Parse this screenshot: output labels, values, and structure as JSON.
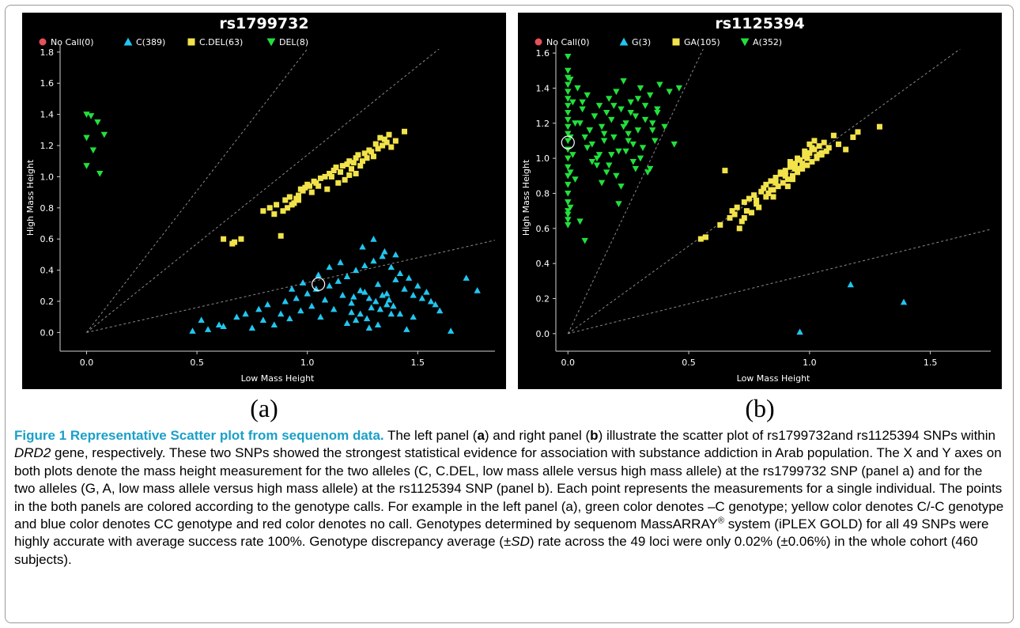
{
  "chart_data": [
    {
      "type": "scatter",
      "title": "rs1799732",
      "xlabel": "Low Mass Height",
      "ylabel": "High Mass Height",
      "xlim": [
        -0.12,
        1.85
      ],
      "ylim": [
        -0.12,
        1.85
      ],
      "xticks": [
        "0.0",
        "0.5",
        "1.0",
        "1.5"
      ],
      "xtick_values": [
        0.0,
        0.5,
        1.0,
        1.5
      ],
      "yticks": [
        "0.0",
        "0.2",
        "0.4",
        "0.6",
        "0.8",
        "1.0",
        "1.2",
        "1.4",
        "1.6",
        "1.8"
      ],
      "ytick_values": [
        0.0,
        0.2,
        0.4,
        0.6,
        0.8,
        1.0,
        1.2,
        1.4,
        1.6,
        1.8
      ],
      "legend_position": "top",
      "legend": [
        {
          "label": "No Call(0)",
          "marker": "circle",
          "color": "#e8505b"
        },
        {
          "label": "C(389)",
          "marker": "triangle-up",
          "color": "#22c6f0"
        },
        {
          "label": "C.DEL(63)",
          "marker": "square",
          "color": "#f2e34a"
        },
        {
          "label": "DEL(8)",
          "marker": "triangle-down",
          "color": "#22e03c"
        }
      ],
      "reference_line_slopes": [
        1.82,
        1.14,
        0.32
      ],
      "circled_point": [
        1.05,
        0.31
      ],
      "series": [
        {
          "name": "DEL(8)",
          "marker": "triangle-down",
          "color": "#22e03c",
          "x": [
            0.0,
            0.02,
            0.05,
            0.0,
            0.03,
            0.0,
            0.08,
            0.06
          ],
          "y": [
            1.4,
            1.39,
            1.35,
            1.25,
            1.17,
            1.07,
            1.27,
            1.02
          ]
        },
        {
          "name": "C.DEL(63)",
          "marker": "square",
          "color": "#f2e34a",
          "x": [
            0.62,
            0.67,
            0.7,
            0.66,
            0.8,
            0.83,
            0.86,
            0.88,
            0.9,
            0.92,
            0.94,
            0.96,
            0.97,
            0.99,
            1.0,
            1.02,
            1.03,
            0.91,
            0.93,
            0.95,
            0.98,
            1.01,
            1.04,
            1.06,
            1.08,
            1.1,
            1.12,
            1.13,
            1.15,
            1.16,
            1.18,
            1.19,
            1.2,
            1.22,
            1.23,
            1.25,
            1.26,
            1.28,
            1.3,
            1.32,
            1.34,
            1.36,
            1.38,
            1.4,
            1.22,
            1.24,
            1.27,
            1.29,
            1.31,
            1.17,
            1.14,
            1.11,
            1.09,
            1.33,
            1.35,
            1.37,
            1.21,
            1.19,
            0.96,
            0.89,
            1.05,
            1.44,
            0.85
          ],
          "y": [
            0.6,
            0.58,
            0.6,
            0.57,
            0.78,
            0.8,
            0.82,
            0.62,
            0.85,
            0.87,
            0.83,
            0.88,
            0.92,
            0.93,
            0.95,
            0.9,
            0.97,
            0.8,
            0.82,
            0.86,
            0.91,
            0.94,
            0.96,
            0.99,
            1.0,
            1.02,
            1.04,
            1.06,
            1.03,
            1.07,
            1.08,
            1.1,
            1.05,
            1.12,
            1.14,
            1.1,
            1.15,
            1.17,
            1.13,
            1.18,
            1.2,
            1.22,
            1.19,
            1.23,
            1.02,
            1.07,
            1.12,
            1.16,
            1.21,
            0.98,
            0.96,
            1.0,
            0.92,
            1.25,
            1.24,
            1.27,
            1.09,
            1.01,
            0.85,
            0.78,
            0.94,
            1.29,
            0.76
          ]
        },
        {
          "name": "C(389)",
          "marker": "triangle-up",
          "color": "#22c6f0",
          "x": [
            0.48,
            0.52,
            0.55,
            0.6,
            0.62,
            0.68,
            0.72,
            0.75,
            0.78,
            0.8,
            0.82,
            0.85,
            0.88,
            0.9,
            0.92,
            0.95,
            0.97,
            1.0,
            1.02,
            1.04,
            1.06,
            1.08,
            1.1,
            1.12,
            1.14,
            1.16,
            1.18,
            1.2,
            1.22,
            1.24,
            1.26,
            1.28,
            1.3,
            1.32,
            1.34,
            1.36,
            1.38,
            1.4,
            1.42,
            1.44,
            1.46,
            1.48,
            1.5,
            1.52,
            1.54,
            1.56,
            1.58,
            1.6,
            1.65,
            1.72,
            1.77,
            1.25,
            1.3,
            1.35,
            1.4,
            1.32,
            1.28,
            1.22,
            1.18,
            1.45,
            1.38,
            1.15,
            1.1,
            1.05,
            0.98,
            0.93,
            1.33,
            1.36,
            1.42,
            1.48,
            1.27,
            1.24,
            1.2,
            1.31,
            1.34,
            1.29,
            1.37,
            1.39,
            1.26,
            1.21
          ],
          "y": [
            0.01,
            0.08,
            0.02,
            0.05,
            0.04,
            0.1,
            0.12,
            0.03,
            0.15,
            0.08,
            0.18,
            0.05,
            0.12,
            0.2,
            0.09,
            0.22,
            0.14,
            0.25,
            0.17,
            0.28,
            0.1,
            0.21,
            0.3,
            0.15,
            0.33,
            0.24,
            0.36,
            0.19,
            0.4,
            0.27,
            0.43,
            0.22,
            0.46,
            0.31,
            0.49,
            0.25,
            0.42,
            0.34,
            0.38,
            0.28,
            0.35,
            0.24,
            0.3,
            0.22,
            0.26,
            0.2,
            0.18,
            0.14,
            0.01,
            0.35,
            0.27,
            0.55,
            0.6,
            0.52,
            0.5,
            0.05,
            0.03,
            0.08,
            0.06,
            0.02,
            0.12,
            0.45,
            0.42,
            0.37,
            0.32,
            0.28,
            0.15,
            0.18,
            0.12,
            0.1,
            0.09,
            0.12,
            0.13,
            0.2,
            0.24,
            0.16,
            0.21,
            0.17,
            0.26,
            0.23
          ]
        }
      ]
    },
    {
      "type": "scatter",
      "title": "rs1125394",
      "xlabel": "Low Mass Height",
      "ylabel": "High Mass Height",
      "xlim": [
        -0.05,
        1.75
      ],
      "ylim": [
        -0.1,
        1.65
      ],
      "xticks": [
        "0.0",
        "0.5",
        "1.0",
        "1.5"
      ],
      "xtick_values": [
        0.0,
        0.5,
        1.0,
        1.5
      ],
      "yticks": [
        "0.0",
        "0.2",
        "0.4",
        "0.6",
        "0.8",
        "1.0",
        "1.2",
        "1.4",
        "1.6"
      ],
      "ytick_values": [
        0.0,
        0.2,
        0.4,
        0.6,
        0.8,
        1.0,
        1.2,
        1.4,
        1.6
      ],
      "legend_position": "top",
      "legend": [
        {
          "label": "No Call(0)",
          "marker": "circle",
          "color": "#e8505b"
        },
        {
          "label": "G(3)",
          "marker": "triangle-up",
          "color": "#22c6f0"
        },
        {
          "label": "GA(105)",
          "marker": "square",
          "color": "#f2e34a"
        },
        {
          "label": "A(352)",
          "marker": "triangle-down",
          "color": "#22e03c"
        }
      ],
      "reference_line_slopes": [
        2.9,
        1.0,
        0.34
      ],
      "circled_point": [
        0.0,
        1.09
      ],
      "series": [
        {
          "name": "A(352)",
          "marker": "triangle-down",
          "color": "#22e03c",
          "x": [
            0.0,
            0.0,
            0.0,
            0.0,
            0.0,
            0.0,
            0.0,
            0.0,
            0.0,
            0.0,
            0.0,
            0.0,
            0.0,
            0.0,
            0.0,
            0.0,
            0.0,
            0.0,
            0.0,
            0.0,
            0.0,
            0.0,
            0.0,
            0.01,
            0.01,
            0.01,
            0.01,
            0.02,
            0.02,
            0.03,
            0.03,
            0.04,
            0.05,
            0.06,
            0.07,
            0.08,
            0.09,
            0.1,
            0.11,
            0.12,
            0.13,
            0.14,
            0.15,
            0.16,
            0.17,
            0.18,
            0.19,
            0.2,
            0.21,
            0.22,
            0.23,
            0.24,
            0.25,
            0.26,
            0.27,
            0.28,
            0.29,
            0.3,
            0.31,
            0.32,
            0.33,
            0.34,
            0.35,
            0.36,
            0.37,
            0.38,
            0.4,
            0.42,
            0.44,
            0.46,
            0.05,
            0.08,
            0.12,
            0.15,
            0.18,
            0.22,
            0.25,
            0.28,
            0.32,
            0.1,
            0.14,
            0.2,
            0.24,
            0.3,
            0.06,
            0.09,
            0.16,
            0.26,
            0.34,
            0.07,
            0.11,
            0.19,
            0.23,
            0.29,
            0.37,
            0.13,
            0.21,
            0.27,
            0.17,
            0.35
          ],
          "y": [
            1.58,
            1.5,
            1.46,
            1.42,
            1.38,
            1.34,
            1.3,
            1.26,
            1.22,
            1.18,
            1.14,
            1.1,
            1.05,
            1.0,
            0.95,
            0.9,
            0.85,
            0.8,
            0.75,
            0.7,
            0.65,
            0.62,
            0.68,
            1.45,
            1.12,
            0.92,
            0.72,
            1.32,
            1.02,
            1.2,
            0.88,
            1.4,
            0.64,
            1.28,
            0.53,
            1.36,
            1.16,
            1.08,
            1.24,
            1.0,
            1.3,
            1.18,
            1.1,
            1.26,
            1.34,
            1.22,
            1.12,
            1.38,
            1.04,
            1.28,
            1.44,
            1.2,
            1.14,
            1.32,
            0.98,
            1.24,
            1.16,
            1.4,
            1.06,
            1.3,
            0.92,
            1.36,
            1.2,
            1.1,
            1.28,
            1.42,
            1.18,
            1.38,
            1.08,
            1.4,
            1.2,
            1.06,
            0.96,
            1.14,
            1.02,
            0.84,
            1.1,
            0.94,
            1.22,
            0.98,
            0.86,
            0.9,
            1.04,
            1.0,
            1.32,
            1.16,
            0.92,
            1.26,
            0.94,
            1.12,
            1.24,
            1.3,
            1.18,
            1.34,
            1.26,
            1.02,
            0.74,
            1.08,
            0.96,
            1.16
          ]
        },
        {
          "name": "GA(105)",
          "marker": "square",
          "color": "#f2e34a",
          "x": [
            0.55,
            0.57,
            0.63,
            0.65,
            0.67,
            0.68,
            0.7,
            0.72,
            0.73,
            0.74,
            0.75,
            0.77,
            0.78,
            0.8,
            0.81,
            0.82,
            0.83,
            0.84,
            0.85,
            0.86,
            0.87,
            0.88,
            0.89,
            0.9,
            0.91,
            0.92,
            0.93,
            0.94,
            0.95,
            0.96,
            0.97,
            0.98,
            0.99,
            1.0,
            1.01,
            1.02,
            1.03,
            1.04,
            1.05,
            1.06,
            1.07,
            1.08,
            1.1,
            1.12,
            1.15,
            1.18,
            1.2,
            1.29,
            0.88,
            0.92,
            0.95,
            0.98,
            1.0,
            1.02,
            1.04,
            0.86,
            0.9,
            0.94,
            0.97,
            0.99,
            1.01,
            1.03,
            0.85,
            0.93,
            0.96,
            1.05,
            0.76,
            0.79,
            0.69,
            0.71,
            0.73,
            0.82,
            0.84,
            0.91,
            0.78
          ],
          "y": [
            0.54,
            0.55,
            0.62,
            0.93,
            0.66,
            0.7,
            0.72,
            0.64,
            0.75,
            0.7,
            0.77,
            0.79,
            0.74,
            0.81,
            0.83,
            0.85,
            0.8,
            0.87,
            0.82,
            0.89,
            0.84,
            0.91,
            0.86,
            0.93,
            0.88,
            0.95,
            0.9,
            0.97,
            0.92,
            0.99,
            0.94,
            1.01,
            0.96,
            1.03,
            0.98,
            1.05,
            1.0,
            1.07,
            1.02,
            1.09,
            1.04,
            1.06,
            1.13,
            1.08,
            1.05,
            1.12,
            1.15,
            1.18,
            0.92,
            0.98,
            1.0,
            1.04,
            1.08,
            1.1,
            1.02,
            0.86,
            0.9,
            0.94,
            0.97,
            1.0,
            1.06,
            1.01,
            0.78,
            0.88,
            0.94,
            1.03,
            0.69,
            0.72,
            0.68,
            0.6,
            0.66,
            0.78,
            0.82,
            0.84,
            0.76
          ]
        },
        {
          "name": "G(3)",
          "marker": "triangle-up",
          "color": "#22c6f0",
          "x": [
            1.17,
            1.39,
            0.96
          ],
          "y": [
            0.28,
            0.18,
            0.01
          ]
        }
      ]
    }
  ],
  "panel_letters": {
    "a": "(a)",
    "b": "(b)"
  },
  "caption": {
    "title": "Figure 1 Representative Scatter plot from sequenom data.",
    "t1": " The left panel (",
    "a1": "a",
    "t2": ") and right panel (",
    "b1": "b",
    "t3": ") illustrate the scatter plot of rs1799732and rs1125394 SNPs within ",
    "gene": "DRD2",
    "t4": " gene, respectively. These two SNPs showed the strongest statistical evidence for association with substance addiction in Arab population. The X and Y axes on both plots denote the mass height measurement for the two alleles (C, C.DEL, low mass allele versus high mass allele) at the rs1799732 SNP (panel a) and for the two alleles (G, A, low mass allele versus high mass allele) at the rs1125394 SNP (panel b). Each point represents the measurements for a single individual. The points in the both panels are colored according to the genotype calls. For example in the left panel (a), green color denotes –C genotype; yellow color denotes C/-C genotype and blue color denotes CC genotype and red color denotes no call. Genotypes determined by sequenom MassARRAY",
    "reg": "®",
    "t5": " system (iPLEX GOLD) for all 49 SNPs were highly accurate with average success rate 100%. Genotype discrepancy average (±",
    "sd": "SD",
    "t6": ") rate across the 49 loci were only 0.02% (±0.06%) in the whole cohort (460 subjects)."
  }
}
